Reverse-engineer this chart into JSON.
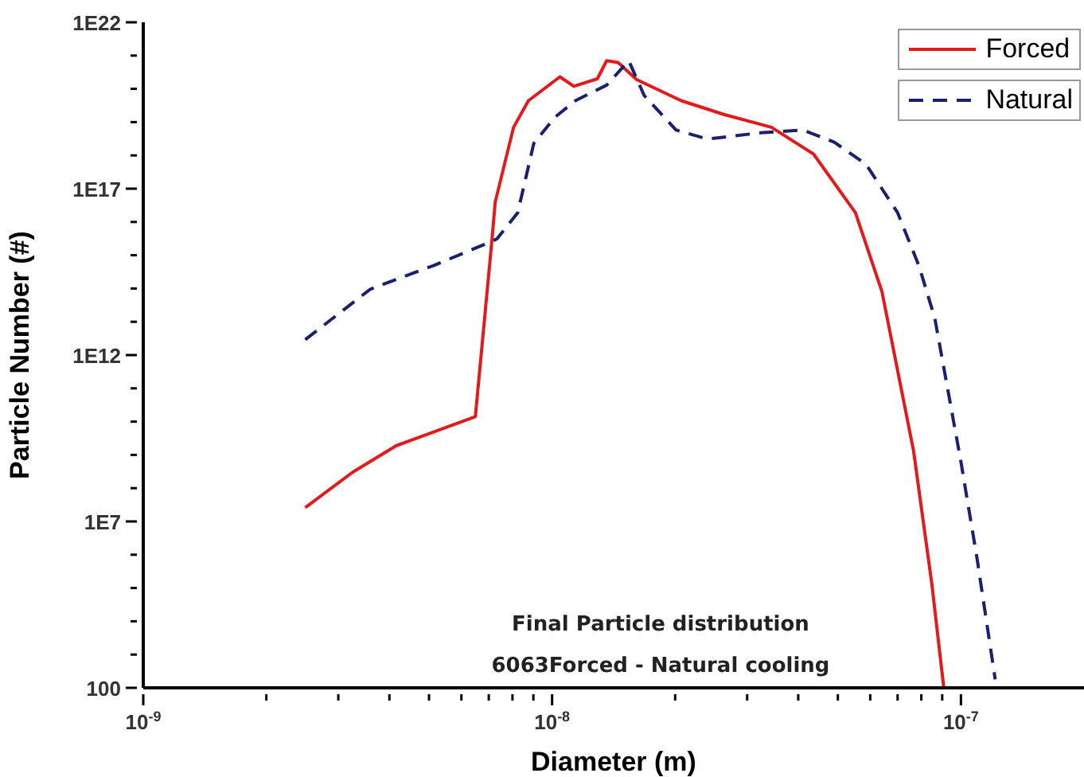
{
  "chart_data": {
    "type": "line",
    "xlabel": "Diameter (m)",
    "ylabel": "Particle Number (#)",
    "log": "xy",
    "xlim": [
      1e-09,
      2e-07
    ],
    "ylim": [
      100,
      1e+22
    ],
    "xticks": [
      {
        "value": 1e-09,
        "label": "10$^{-9}$"
      },
      {
        "value": 2e-09,
        "label": null
      },
      {
        "value": 3e-09,
        "label": null
      },
      {
        "value": 4e-09,
        "label": null
      },
      {
        "value": 5e-09,
        "label": null
      },
      {
        "value": 6e-09,
        "label": null
      },
      {
        "value": 7e-09,
        "label": null
      },
      {
        "value": 8e-09,
        "label": null
      },
      {
        "value": 9e-09,
        "label": null
      },
      {
        "value": 1e-08,
        "label": "10$^{-8}$"
      },
      {
        "value": 2e-08,
        "label": null
      },
      {
        "value": 3e-08,
        "label": null
      },
      {
        "value": 4e-08,
        "label": null
      },
      {
        "value": 5e-08,
        "label": null
      },
      {
        "value": 6e-08,
        "label": null
      },
      {
        "value": 7e-08,
        "label": null
      },
      {
        "value": 8e-08,
        "label": null
      },
      {
        "value": 9e-08,
        "label": null
      },
      {
        "value": 1e-07,
        "label": "10$^{-7}$"
      }
    ],
    "yticks": [
      100,
      {
        "value": 1000.0,
        "label": null
      },
      {
        "value": 10000.0,
        "label": null
      },
      {
        "value": 100000.0,
        "label": null
      },
      {
        "value": 1000000.0,
        "label": null
      },
      {
        "value": 10000000.0,
        "label": "1E7"
      },
      {
        "value": 100000000.0,
        "label": null
      },
      {
        "value": 1000000000.0,
        "label": null
      },
      {
        "value": 10000000000.0,
        "label": null
      },
      {
        "value": 100000000000.0,
        "label": null
      },
      {
        "value": 1000000000000.0,
        "label": "1E12"
      },
      {
        "value": 10000000000000.0,
        "label": null
      },
      {
        "value": 100000000000000.0,
        "label": null
      },
      {
        "value": 1000000000000000.0,
        "label": null
      },
      {
        "value": 1e+16,
        "label": null
      },
      {
        "value": 1e+17,
        "label": "1E17"
      },
      {
        "value": 1e+18,
        "label": null
      },
      {
        "value": 1e+19,
        "label": null
      },
      {
        "value": 1e+20,
        "label": null
      },
      {
        "value": 1e+21,
        "label": null
      },
      {
        "value": 1e+22,
        "label": "1E22"
      }
    ],
    "legend": "top right",
    "marker": "none",
    "annotations": [
      "Final Particle distribution",
      "6063Forced - Natural cooling"
    ],
    "series": [
      {
        "name": "Forced",
        "color": "#e31a1c",
        "line_style": "solid",
        "x": [
          2.49e-09,
          3.25e-09,
          4.16e-09,
          6.49e-09,
          7.11e-09,
          7.26e-09,
          8.05e-09,
          8.75e-09,
          1.045e-08,
          1.13e-08,
          1.29e-08,
          1.36e-08,
          1.45e-08,
          1.61e-08,
          2.07e-08,
          2.63e-08,
          3.44e-08,
          4.36e-08,
          5.52e-08,
          6.41e-08,
          7.66e-08,
          8.49e-08,
          9.08e-08
        ],
        "values": [
          26000000.0,
          300000000.0,
          1900000000.0,
          14000000000.0,
          2100000000000000.0,
          4e+16,
          7e+18,
          4.4e+19,
          2.3e+20,
          1.2e+20,
          2e+20,
          7e+20,
          6.2e+20,
          1.9e+20,
          4.4e+19,
          1.7e+19,
          7e+18,
          1.1e+18,
          1.9e+16,
          80000000000000.0,
          1300000000.0,
          130000.0,
          100
        ]
      },
      {
        "name": "Natural",
        "color": "#1a1f6e",
        "line_style": "dashed",
        "x": [
          2.49e-09,
          3.59e-09,
          5.13e-09,
          7.11e-09,
          7.33e-09,
          8.24e-09,
          9.02e-09,
          1.016e-08,
          1.14e-08,
          1.36e-08,
          1.54e-08,
          1.68e-08,
          2.01e-08,
          2.4e-08,
          3.24e-08,
          4.1e-08,
          4.9e-08,
          5.86e-08,
          7e-08,
          7.89e-08,
          8.63e-08,
          1e-07,
          1.094e-07,
          1.213e-07
        ],
        "values": [
          2900000000000.0,
          95000000000000.0,
          490000000000000.0,
          2600000000000000.0,
          3100000000000000.0,
          1.9e+16,
          2.3e+18,
          1.4e+19,
          4.4e+19,
          1.3e+20,
          7e+20,
          6.3e+19,
          5.8e+18,
          3.1e+18,
          4.8e+18,
          5.8e+18,
          2.5e+18,
          5.4e+17,
          1.9e+16,
          490000000000000.0,
          13000000000000.0,
          620000000.0,
          830000.0,
          180
        ]
      }
    ]
  }
}
